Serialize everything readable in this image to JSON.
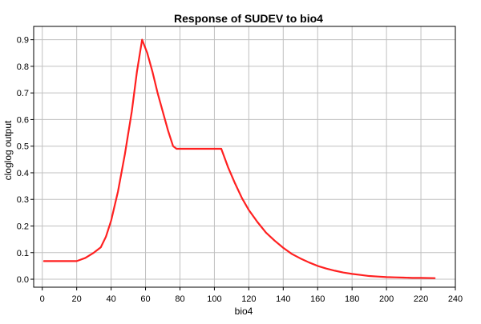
{
  "chart_data": {
    "type": "line",
    "title": "Response of SUDEV to bio4",
    "xlabel": "bio4",
    "ylabel": "cloglog output",
    "xlim": [
      -5,
      240
    ],
    "ylim": [
      -0.03,
      0.95
    ],
    "x_ticks": [
      0,
      20,
      40,
      60,
      80,
      100,
      120,
      140,
      160,
      180,
      200,
      220,
      240
    ],
    "y_ticks": [
      0.0,
      0.1,
      0.2,
      0.3,
      0.4,
      0.5,
      0.6,
      0.7,
      0.8,
      0.9
    ],
    "x_tick_labels": [
      "0",
      "20",
      "40",
      "60",
      "80",
      "100",
      "120",
      "140",
      "160",
      "180",
      "200",
      "220",
      "240"
    ],
    "y_tick_labels": [
      "0.0",
      "0.1",
      "0.2",
      "0.3",
      "0.4",
      "0.5",
      "0.6",
      "0.7",
      "0.8",
      "0.9"
    ],
    "grid": true,
    "series": [
      {
        "color": "#ff2020",
        "points": [
          [
            1,
            0.068
          ],
          [
            20,
            0.068
          ],
          [
            25,
            0.08
          ],
          [
            30,
            0.1
          ],
          [
            34,
            0.12
          ],
          [
            37,
            0.16
          ],
          [
            40,
            0.22
          ],
          [
            44,
            0.33
          ],
          [
            48,
            0.47
          ],
          [
            52,
            0.63
          ],
          [
            55,
            0.78
          ],
          [
            58,
            0.9
          ],
          [
            61,
            0.85
          ],
          [
            64,
            0.78
          ],
          [
            67,
            0.7
          ],
          [
            70,
            0.63
          ],
          [
            73,
            0.56
          ],
          [
            76,
            0.5
          ],
          [
            78,
            0.49
          ],
          [
            104,
            0.49
          ],
          [
            108,
            0.42
          ],
          [
            112,
            0.36
          ],
          [
            116,
            0.305
          ],
          [
            120,
            0.26
          ],
          [
            125,
            0.215
          ],
          [
            130,
            0.175
          ],
          [
            135,
            0.145
          ],
          [
            140,
            0.118
          ],
          [
            145,
            0.095
          ],
          [
            150,
            0.078
          ],
          [
            155,
            0.063
          ],
          [
            160,
            0.05
          ],
          [
            165,
            0.04
          ],
          [
            170,
            0.032
          ],
          [
            175,
            0.025
          ],
          [
            180,
            0.02
          ],
          [
            185,
            0.016
          ],
          [
            190,
            0.012
          ],
          [
            195,
            0.01
          ],
          [
            200,
            0.008
          ],
          [
            205,
            0.007
          ],
          [
            210,
            0.006
          ],
          [
            215,
            0.005
          ],
          [
            220,
            0.005
          ],
          [
            228,
            0.004
          ]
        ]
      }
    ]
  }
}
